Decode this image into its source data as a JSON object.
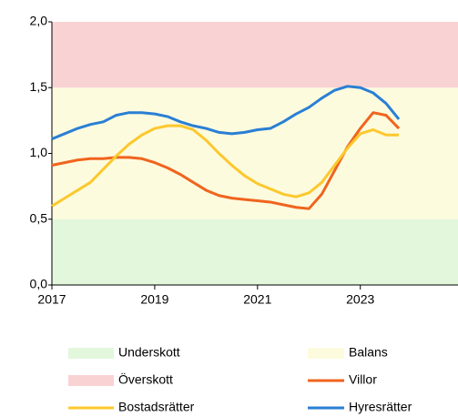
{
  "chart_data": {
    "type": "line",
    "x": [
      2017,
      2017.25,
      2017.5,
      2017.75,
      2018,
      2018.25,
      2018.5,
      2018.75,
      2019,
      2019.25,
      2019.5,
      2019.75,
      2020,
      2020.25,
      2020.5,
      2020.75,
      2021,
      2021.25,
      2021.5,
      2021.75,
      2022,
      2022.25,
      2022.5,
      2022.75,
      2023,
      2023.25,
      2023.5,
      2023.75
    ],
    "bands": [
      {
        "name": "Underskott",
        "color": "#e2f7dc",
        "range": [
          0,
          0.5
        ]
      },
      {
        "name": "Balans",
        "color": "#fdfbde",
        "range": [
          0.5,
          1.5
        ]
      },
      {
        "name": "Överskott",
        "color": "#f9d2d3",
        "range": [
          1.5,
          2.0
        ]
      }
    ],
    "series": [
      {
        "name": "Villor",
        "color": "#f0641e",
        "values": [
          0.91,
          0.93,
          0.95,
          0.96,
          0.96,
          0.97,
          0.97,
          0.96,
          0.93,
          0.89,
          0.84,
          0.78,
          0.72,
          0.68,
          0.66,
          0.65,
          0.64,
          0.63,
          0.61,
          0.59,
          0.58,
          0.69,
          0.87,
          1.05,
          1.19,
          1.31,
          1.29,
          1.19
        ]
      },
      {
        "name": "Bostadsrätter",
        "color": "#fcc82d",
        "values": [
          0.6,
          0.66,
          0.72,
          0.78,
          0.88,
          0.98,
          1.07,
          1.14,
          1.19,
          1.21,
          1.21,
          1.18,
          1.1,
          1.0,
          0.91,
          0.83,
          0.77,
          0.73,
          0.69,
          0.67,
          0.7,
          0.78,
          0.91,
          1.04,
          1.15,
          1.18,
          1.14,
          1.14
        ]
      },
      {
        "name": "Hyresrätter",
        "color": "#2a7fd4",
        "values": [
          1.11,
          1.15,
          1.19,
          1.22,
          1.24,
          1.29,
          1.31,
          1.31,
          1.3,
          1.28,
          1.24,
          1.21,
          1.19,
          1.16,
          1.15,
          1.16,
          1.18,
          1.19,
          1.24,
          1.3,
          1.35,
          1.42,
          1.48,
          1.51,
          1.5,
          1.46,
          1.38,
          1.26
        ]
      }
    ],
    "xlim": [
      2017,
      2024.9
    ],
    "xticks": [
      2017,
      2019,
      2021,
      2023
    ],
    "ylim": [
      0,
      2
    ],
    "yticks": [
      {
        "value": 0,
        "label": "0,0"
      },
      {
        "value": 0.5,
        "label": "0,5"
      },
      {
        "value": 1,
        "label": "1,0"
      },
      {
        "value": 1.5,
        "label": "1,5"
      },
      {
        "value": 2,
        "label": "2,0"
      }
    ]
  }
}
